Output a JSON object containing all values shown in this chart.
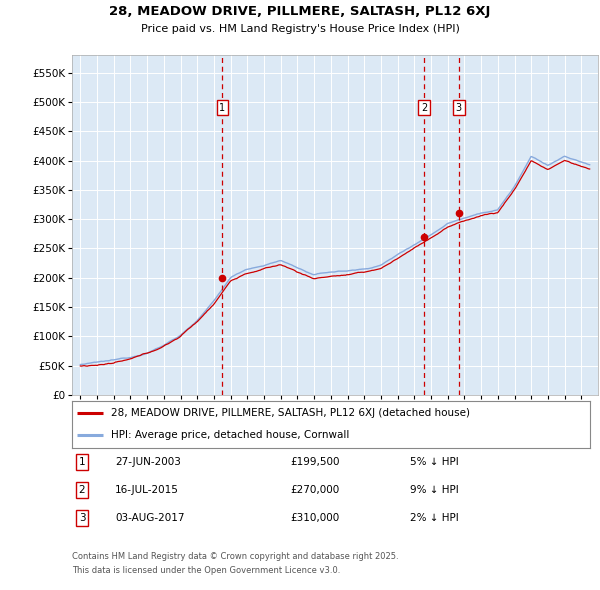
{
  "title": "28, MEADOW DRIVE, PILLMERE, SALTASH, PL12 6XJ",
  "subtitle": "Price paid vs. HM Land Registry's House Price Index (HPI)",
  "legend_line1": "28, MEADOW DRIVE, PILLMERE, SALTASH, PL12 6XJ (detached house)",
  "legend_line2": "HPI: Average price, detached house, Cornwall",
  "footer1": "Contains HM Land Registry data © Crown copyright and database right 2025.",
  "footer2": "This data is licensed under the Open Government Licence v3.0.",
  "transactions": [
    {
      "label": "1",
      "date": "2003-06-27",
      "price": 199500,
      "pct": "5%",
      "dir": "↓"
    },
    {
      "label": "2",
      "date": "2015-07-16",
      "price": 270000,
      "pct": "9%",
      "dir": "↓"
    },
    {
      "label": "3",
      "date": "2017-08-03",
      "price": 310000,
      "pct": "2%",
      "dir": "↓"
    }
  ],
  "table_dates": [
    "27-JUN-2003",
    "16-JUL-2015",
    "03-AUG-2017"
  ],
  "table_prices": [
    "£199,500",
    "£270,000",
    "£310,000"
  ],
  "table_pcts": [
    "5% ↓ HPI",
    "9% ↓ HPI",
    "2% ↓ HPI"
  ],
  "price_color": "#cc0000",
  "hpi_color": "#88aadd",
  "background_color": "#dce9f5",
  "plot_bg_color": "#dce9f5",
  "grid_color": "#ffffff",
  "vline_color": "#cc0000",
  "ylim": [
    0,
    580000
  ],
  "yticks": [
    0,
    50000,
    100000,
    150000,
    200000,
    250000,
    300000,
    350000,
    400000,
    450000,
    500000,
    550000
  ],
  "xstart": 1994.5,
  "xend": 2026.0
}
